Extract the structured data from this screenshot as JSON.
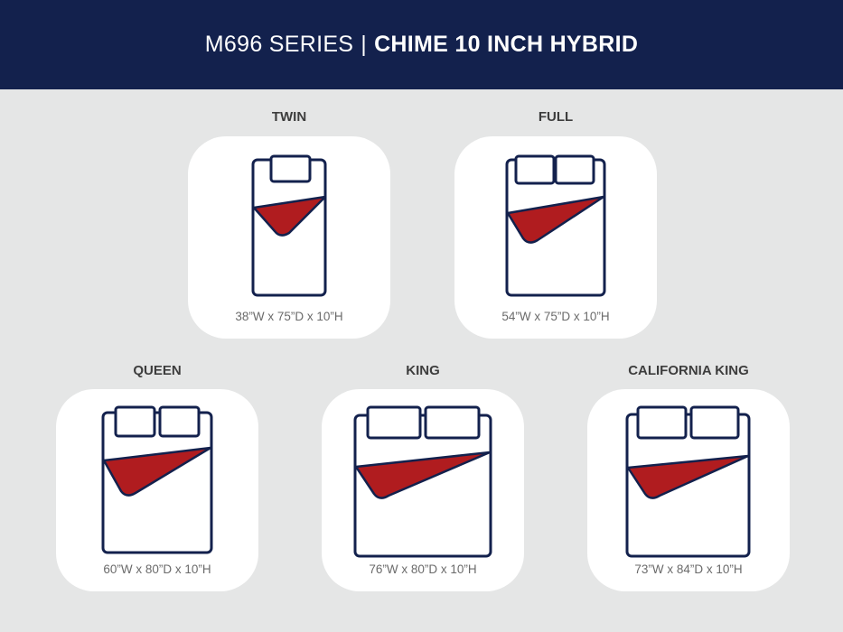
{
  "header": {
    "series": "M696 SERIES",
    "separator": "|",
    "product": "CHIME 10 INCH HYBRID"
  },
  "colors": {
    "header_bg": "#13214d",
    "outline": "#13214d",
    "blanket": "#b01c1f",
    "background": "#e5e6e6",
    "card": "#ffffff"
  },
  "sizes": [
    {
      "name": "TWIN",
      "dimensions": "38”W x 75”D x 10”H",
      "icon": "twin-bed-icon"
    },
    {
      "name": "FULL",
      "dimensions": "54”W x 75”D x 10”H",
      "icon": "full-bed-icon"
    },
    {
      "name": "QUEEN",
      "dimensions": "60”W x 80”D x 10”H",
      "icon": "queen-bed-icon"
    },
    {
      "name": "KING",
      "dimensions": "76”W x 80”D x 10”H",
      "icon": "king-bed-icon"
    },
    {
      "name": "CALIFORNIA KING",
      "dimensions": "73”W x 84”D x 10”H",
      "icon": "california-king-bed-icon"
    }
  ]
}
